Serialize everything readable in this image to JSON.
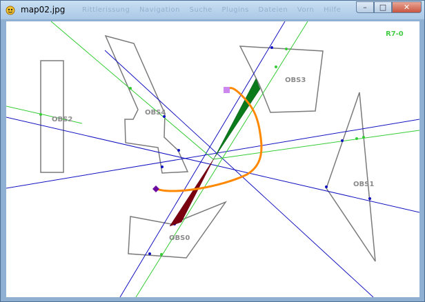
{
  "window": {
    "title": "map02.jpg",
    "ghost_menu": [
      "Rittlerissung",
      "Navigation",
      "Suche",
      "Plugins",
      "Dateien",
      "Vorn",
      "Hilfe"
    ],
    "controls": {
      "minimize": "–",
      "maximize": "□",
      "close": "✕"
    }
  },
  "map": {
    "status_code": "R7-0",
    "obstacles": [
      {
        "id": "OBS0",
        "label": "OBS0"
      },
      {
        "id": "OBS1",
        "label": "OBS1"
      },
      {
        "id": "OBS2",
        "label": "OBS2"
      },
      {
        "id": "OBS3",
        "label": "OBS3"
      },
      {
        "id": "OBS4",
        "label": "OBS4"
      }
    ],
    "colors": {
      "obstacle_outline": "#7a7a7a",
      "blue_lines": "#1010c0",
      "green_lines": "#33cc33",
      "path": "#ff8800",
      "cone_green": "#0a7a1a",
      "cone_red": "#7a0010",
      "start_marker": "#6a0aa0",
      "goal_marker": "#cc88ee"
    }
  }
}
